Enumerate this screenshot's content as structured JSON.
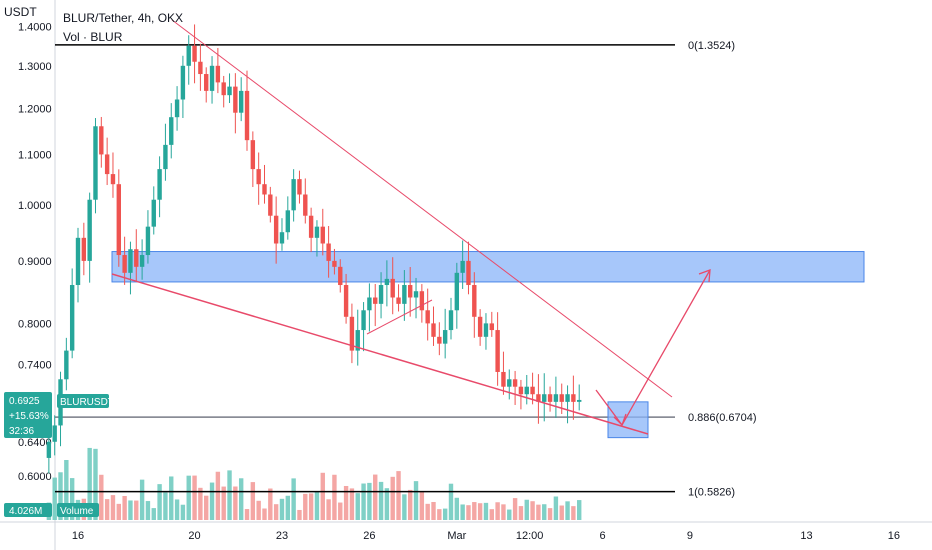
{
  "header": {
    "unit_label": "USDT",
    "title": "BLUR/Tether, 4h, OKX",
    "volume_indicator": "Vol · BLUR"
  },
  "price_tag": {
    "symbol": "BLURUSDT",
    "price": "0.6925",
    "change": "+15.63%",
    "countdown": "32:36",
    "color": "#26a69a"
  },
  "volume_tag": {
    "value": "4.026M",
    "label": "Volume",
    "color": "#26a69a"
  },
  "fib_levels": [
    {
      "label": "0(1.3524)",
      "price": 1.3524,
      "color": "#000000"
    },
    {
      "label": "0.886(0.6704)",
      "price": 0.6704,
      "color": "#787b86"
    },
    {
      "label": "1(0.5826)",
      "price": 0.5826,
      "color": "#000000"
    }
  ],
  "colors": {
    "up": "#26a69a",
    "down": "#ef5350",
    "vol_up": "#7fd0c6",
    "vol_down": "#f4a6a4",
    "zone_fill": "#8ab4f8",
    "zone_stroke": "#4a86e8",
    "trend": "#e84a6a"
  },
  "chart_data": {
    "type": "candlestick",
    "title": "BLUR/Tether, 4h, OKX",
    "ylabel": "USDT",
    "yscale": "log",
    "ylim": [
      0.53,
      1.42
    ],
    "y_ticks": [
      {
        "label": "1.4000",
        "value": 1.4
      },
      {
        "label": "1.3000",
        "value": 1.3
      },
      {
        "label": "1.2000",
        "value": 1.2
      },
      {
        "label": "1.1000",
        "value": 1.1
      },
      {
        "label": "1.0000",
        "value": 1.0
      },
      {
        "label": "0.9000",
        "value": 0.9
      },
      {
        "label": "0.8000",
        "value": 0.8
      },
      {
        "label": "0.7400",
        "value": 0.74
      },
      {
        "label": "0.6400",
        "value": 0.64
      },
      {
        "label": "0.6000",
        "value": 0.6
      }
    ],
    "x_ticks": [
      {
        "label": "16",
        "day": 16
      },
      {
        "label": "20",
        "day": 20
      },
      {
        "label": "23",
        "day": 23
      },
      {
        "label": "26",
        "day": 26
      },
      {
        "label": "Mar",
        "day": 29
      },
      {
        "label": "12:00",
        "day": 31.5
      },
      {
        "label": "6",
        "day": 34
      },
      {
        "label": "9",
        "day": 37
      },
      {
        "label": "13",
        "day": 41
      },
      {
        "label": "16",
        "day": 44
      }
    ],
    "xlim": [
      14.8,
      45.8
    ],
    "close_series": [
      {
        "day": 15.0,
        "close": 0.64
      },
      {
        "day": 15.2,
        "close": 0.66
      },
      {
        "day": 15.4,
        "close": 0.72
      },
      {
        "day": 15.6,
        "close": 0.76
      },
      {
        "day": 15.8,
        "close": 0.86
      },
      {
        "day": 16.0,
        "close": 0.94
      },
      {
        "day": 16.2,
        "close": 0.9
      },
      {
        "day": 16.4,
        "close": 1.01
      },
      {
        "day": 16.6,
        "close": 1.16
      },
      {
        "day": 16.8,
        "close": 1.1
      },
      {
        "day": 17.0,
        "close": 1.06
      },
      {
        "day": 17.2,
        "close": 1.04
      },
      {
        "day": 17.4,
        "close": 0.91
      },
      {
        "day": 17.6,
        "close": 0.88
      },
      {
        "day": 17.8,
        "close": 0.92
      },
      {
        "day": 18.0,
        "close": 0.89
      },
      {
        "day": 18.2,
        "close": 0.91
      },
      {
        "day": 18.4,
        "close": 0.96
      },
      {
        "day": 18.6,
        "close": 1.01
      },
      {
        "day": 18.8,
        "close": 1.07
      },
      {
        "day": 19.0,
        "close": 1.12
      },
      {
        "day": 19.2,
        "close": 1.18
      },
      {
        "day": 19.4,
        "close": 1.22
      },
      {
        "day": 19.6,
        "close": 1.3
      },
      {
        "day": 19.8,
        "close": 1.35
      },
      {
        "day": 20.0,
        "close": 1.31
      },
      {
        "day": 20.2,
        "close": 1.28
      },
      {
        "day": 20.4,
        "close": 1.24
      },
      {
        "day": 20.6,
        "close": 1.3
      },
      {
        "day": 20.8,
        "close": 1.26
      },
      {
        "day": 21.0,
        "close": 1.23
      },
      {
        "day": 21.2,
        "close": 1.25
      },
      {
        "day": 21.4,
        "close": 1.19
      },
      {
        "day": 21.6,
        "close": 1.24
      },
      {
        "day": 21.8,
        "close": 1.13
      },
      {
        "day": 22.0,
        "close": 1.07
      },
      {
        "day": 22.2,
        "close": 1.04
      },
      {
        "day": 22.4,
        "close": 1.02
      },
      {
        "day": 22.6,
        "close": 0.98
      },
      {
        "day": 22.8,
        "close": 0.93
      },
      {
        "day": 23.0,
        "close": 0.95
      },
      {
        "day": 23.2,
        "close": 0.99
      },
      {
        "day": 23.4,
        "close": 1.05
      },
      {
        "day": 23.6,
        "close": 1.02
      },
      {
        "day": 23.8,
        "close": 0.98
      },
      {
        "day": 24.0,
        "close": 0.94
      },
      {
        "day": 24.2,
        "close": 0.96
      },
      {
        "day": 24.4,
        "close": 0.93
      },
      {
        "day": 24.6,
        "close": 0.9
      },
      {
        "day": 24.8,
        "close": 0.89
      },
      {
        "day": 25.0,
        "close": 0.86
      },
      {
        "day": 25.2,
        "close": 0.81
      },
      {
        "day": 25.4,
        "close": 0.76
      },
      {
        "day": 25.6,
        "close": 0.79
      },
      {
        "day": 25.8,
        "close": 0.82
      },
      {
        "day": 26.0,
        "close": 0.84
      },
      {
        "day": 26.2,
        "close": 0.83
      },
      {
        "day": 26.4,
        "close": 0.86
      },
      {
        "day": 26.6,
        "close": 0.87
      },
      {
        "day": 26.8,
        "close": 0.84
      },
      {
        "day": 27.0,
        "close": 0.83
      },
      {
        "day": 27.2,
        "close": 0.86
      },
      {
        "day": 27.4,
        "close": 0.84
      },
      {
        "day": 27.6,
        "close": 0.85
      },
      {
        "day": 27.8,
        "close": 0.82
      },
      {
        "day": 28.0,
        "close": 0.8
      },
      {
        "day": 28.2,
        "close": 0.78
      },
      {
        "day": 28.4,
        "close": 0.77
      },
      {
        "day": 28.6,
        "close": 0.79
      },
      {
        "day": 28.8,
        "close": 0.82
      },
      {
        "day": 29.0,
        "close": 0.88
      },
      {
        "day": 29.2,
        "close": 0.9
      },
      {
        "day": 29.4,
        "close": 0.86
      },
      {
        "day": 29.6,
        "close": 0.81
      },
      {
        "day": 29.8,
        "close": 0.78
      },
      {
        "day": 30.0,
        "close": 0.8
      },
      {
        "day": 30.2,
        "close": 0.79
      },
      {
        "day": 30.4,
        "close": 0.73
      },
      {
        "day": 30.6,
        "close": 0.71
      },
      {
        "day": 30.8,
        "close": 0.72
      },
      {
        "day": 31.0,
        "close": 0.71
      },
      {
        "day": 31.2,
        "close": 0.7
      },
      {
        "day": 31.4,
        "close": 0.71
      },
      {
        "day": 31.6,
        "close": 0.7
      },
      {
        "day": 31.8,
        "close": 0.69
      },
      {
        "day": 32.0,
        "close": 0.7
      },
      {
        "day": 32.2,
        "close": 0.69
      },
      {
        "day": 32.4,
        "close": 0.7
      },
      {
        "day": 32.6,
        "close": 0.69
      },
      {
        "day": 32.8,
        "close": 0.7
      },
      {
        "day": 33.0,
        "close": 0.69
      },
      {
        "day": 33.2,
        "close": 0.6925
      }
    ],
    "annotations": [
      {
        "type": "fib_retracement",
        "levels": [
          "0(1.3524)",
          "0.886(0.6704)",
          "1(0.5826)"
        ]
      },
      {
        "type": "resistance_zone",
        "price_low": 0.865,
        "price_high": 0.916
      },
      {
        "type": "falling_wedge"
      },
      {
        "type": "target_zone",
        "price_low": 0.645,
        "price_high": 0.69
      },
      {
        "type": "projected_path_arrow"
      }
    ]
  }
}
